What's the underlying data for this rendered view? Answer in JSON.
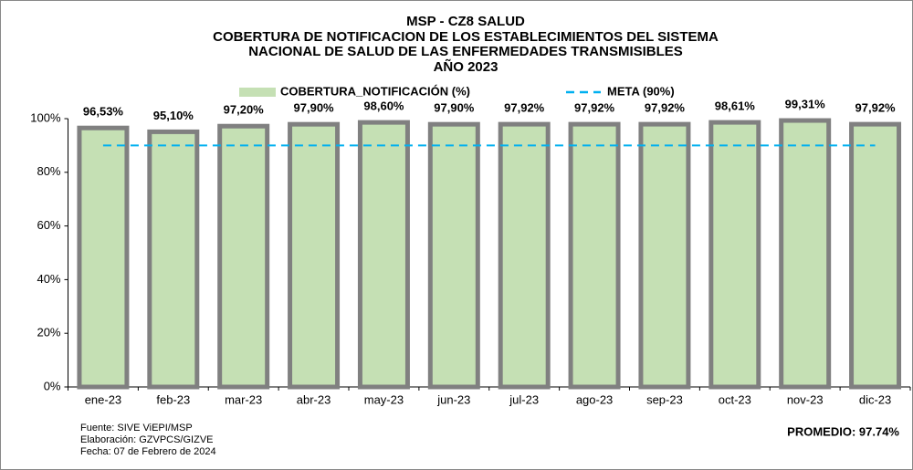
{
  "chart_data": {
    "type": "bar",
    "title": [
      "MSP - CZ8  SALUD",
      "COBERTURA DE NOTIFICACION DE LOS ESTABLECIMIENTOS DEL SISTEMA",
      "NACIONAL DE SALUD DE LAS ENFERMEDADES TRANSMISIBLES",
      "AÑO 2023"
    ],
    "categories": [
      "ene-23",
      "feb-23",
      "mar-23",
      "abr-23",
      "may-23",
      "jun-23",
      "jul-23",
      "ago-23",
      "sep-23",
      "oct-23",
      "nov-23",
      "dic-23"
    ],
    "series": [
      {
        "name": "COBERTURA_NOTIFICACIÓN (%)",
        "type": "bar",
        "color": "#c5e0b4",
        "edge": "#808080",
        "values": [
          96.53,
          95.1,
          97.2,
          97.9,
          98.6,
          97.9,
          97.92,
          97.92,
          97.92,
          98.61,
          99.31,
          97.92
        ],
        "value_labels": [
          "96,53%",
          "95,10%",
          "97,20%",
          "97,90%",
          "98,60%",
          "97,90%",
          "97,92%",
          "97,92%",
          "97,92%",
          "98,61%",
          "99,31%",
          "97,92%"
        ]
      },
      {
        "name": "META (90%)",
        "type": "line",
        "dashed": true,
        "color": "#00b0f0",
        "values": [
          90,
          90,
          90,
          90,
          90,
          90,
          90,
          90,
          90,
          90,
          90,
          90
        ]
      }
    ],
    "ylim": [
      0,
      100
    ],
    "yticks": [
      {
        "value": 0,
        "label": "0%"
      },
      {
        "value": 20,
        "label": "20%"
      },
      {
        "value": 40,
        "label": "40%"
      },
      {
        "value": 60,
        "label": "60%"
      },
      {
        "value": 80,
        "label": "80%"
      },
      {
        "value": 100,
        "label": "100%"
      }
    ],
    "notes": [
      "Fuente: SIVE ViEPI/MSP",
      "Elaboración: GZVPCS/GIZVE",
      "Fecha: 07 de Febrero de 2024"
    ],
    "average": "PROMEDIO: 97.74%"
  }
}
